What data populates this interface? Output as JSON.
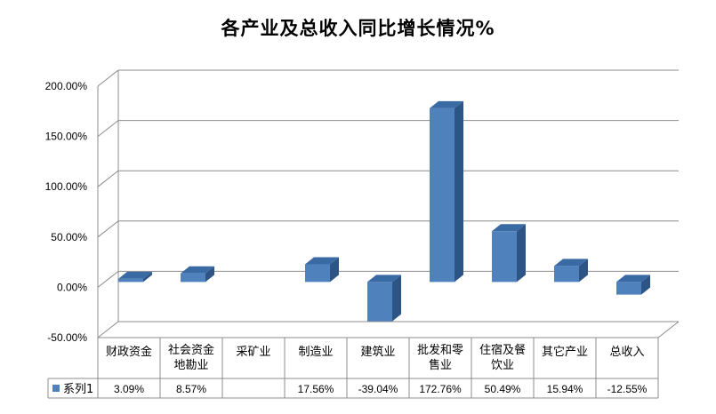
{
  "chart_data": {
    "type": "bar",
    "title": "各产业及总收入同比增长情况%",
    "xlabel": "",
    "ylabel": "",
    "ylim": [
      -50,
      200
    ],
    "yticks": [
      "200.00%",
      "150.00%",
      "100.00%",
      "50.00%",
      "0.00%",
      "-50.00%"
    ],
    "grid": true,
    "bar_style": "3d",
    "categories": [
      [
        "财政资金"
      ],
      [
        "社会资金",
        "地勘业"
      ],
      [
        "采矿业"
      ],
      [
        "制造业"
      ],
      [
        "建筑业"
      ],
      [
        "批发和零",
        "售业"
      ],
      [
        "住宿及餐",
        "饮业"
      ],
      [
        "其它产业"
      ],
      [
        "总收入"
      ]
    ],
    "series": [
      {
        "name": "系列1",
        "color": "#4f81bd",
        "values": [
          3.09,
          8.57,
          null,
          17.56,
          -39.04,
          172.76,
          50.49,
          15.94,
          -12.55
        ],
        "labels": [
          "3.09%",
          "8.57%",
          "",
          "17.56%",
          "-39.04%",
          "172.76%",
          "50.49%",
          "15.94%",
          "-12.55%"
        ]
      }
    ]
  }
}
